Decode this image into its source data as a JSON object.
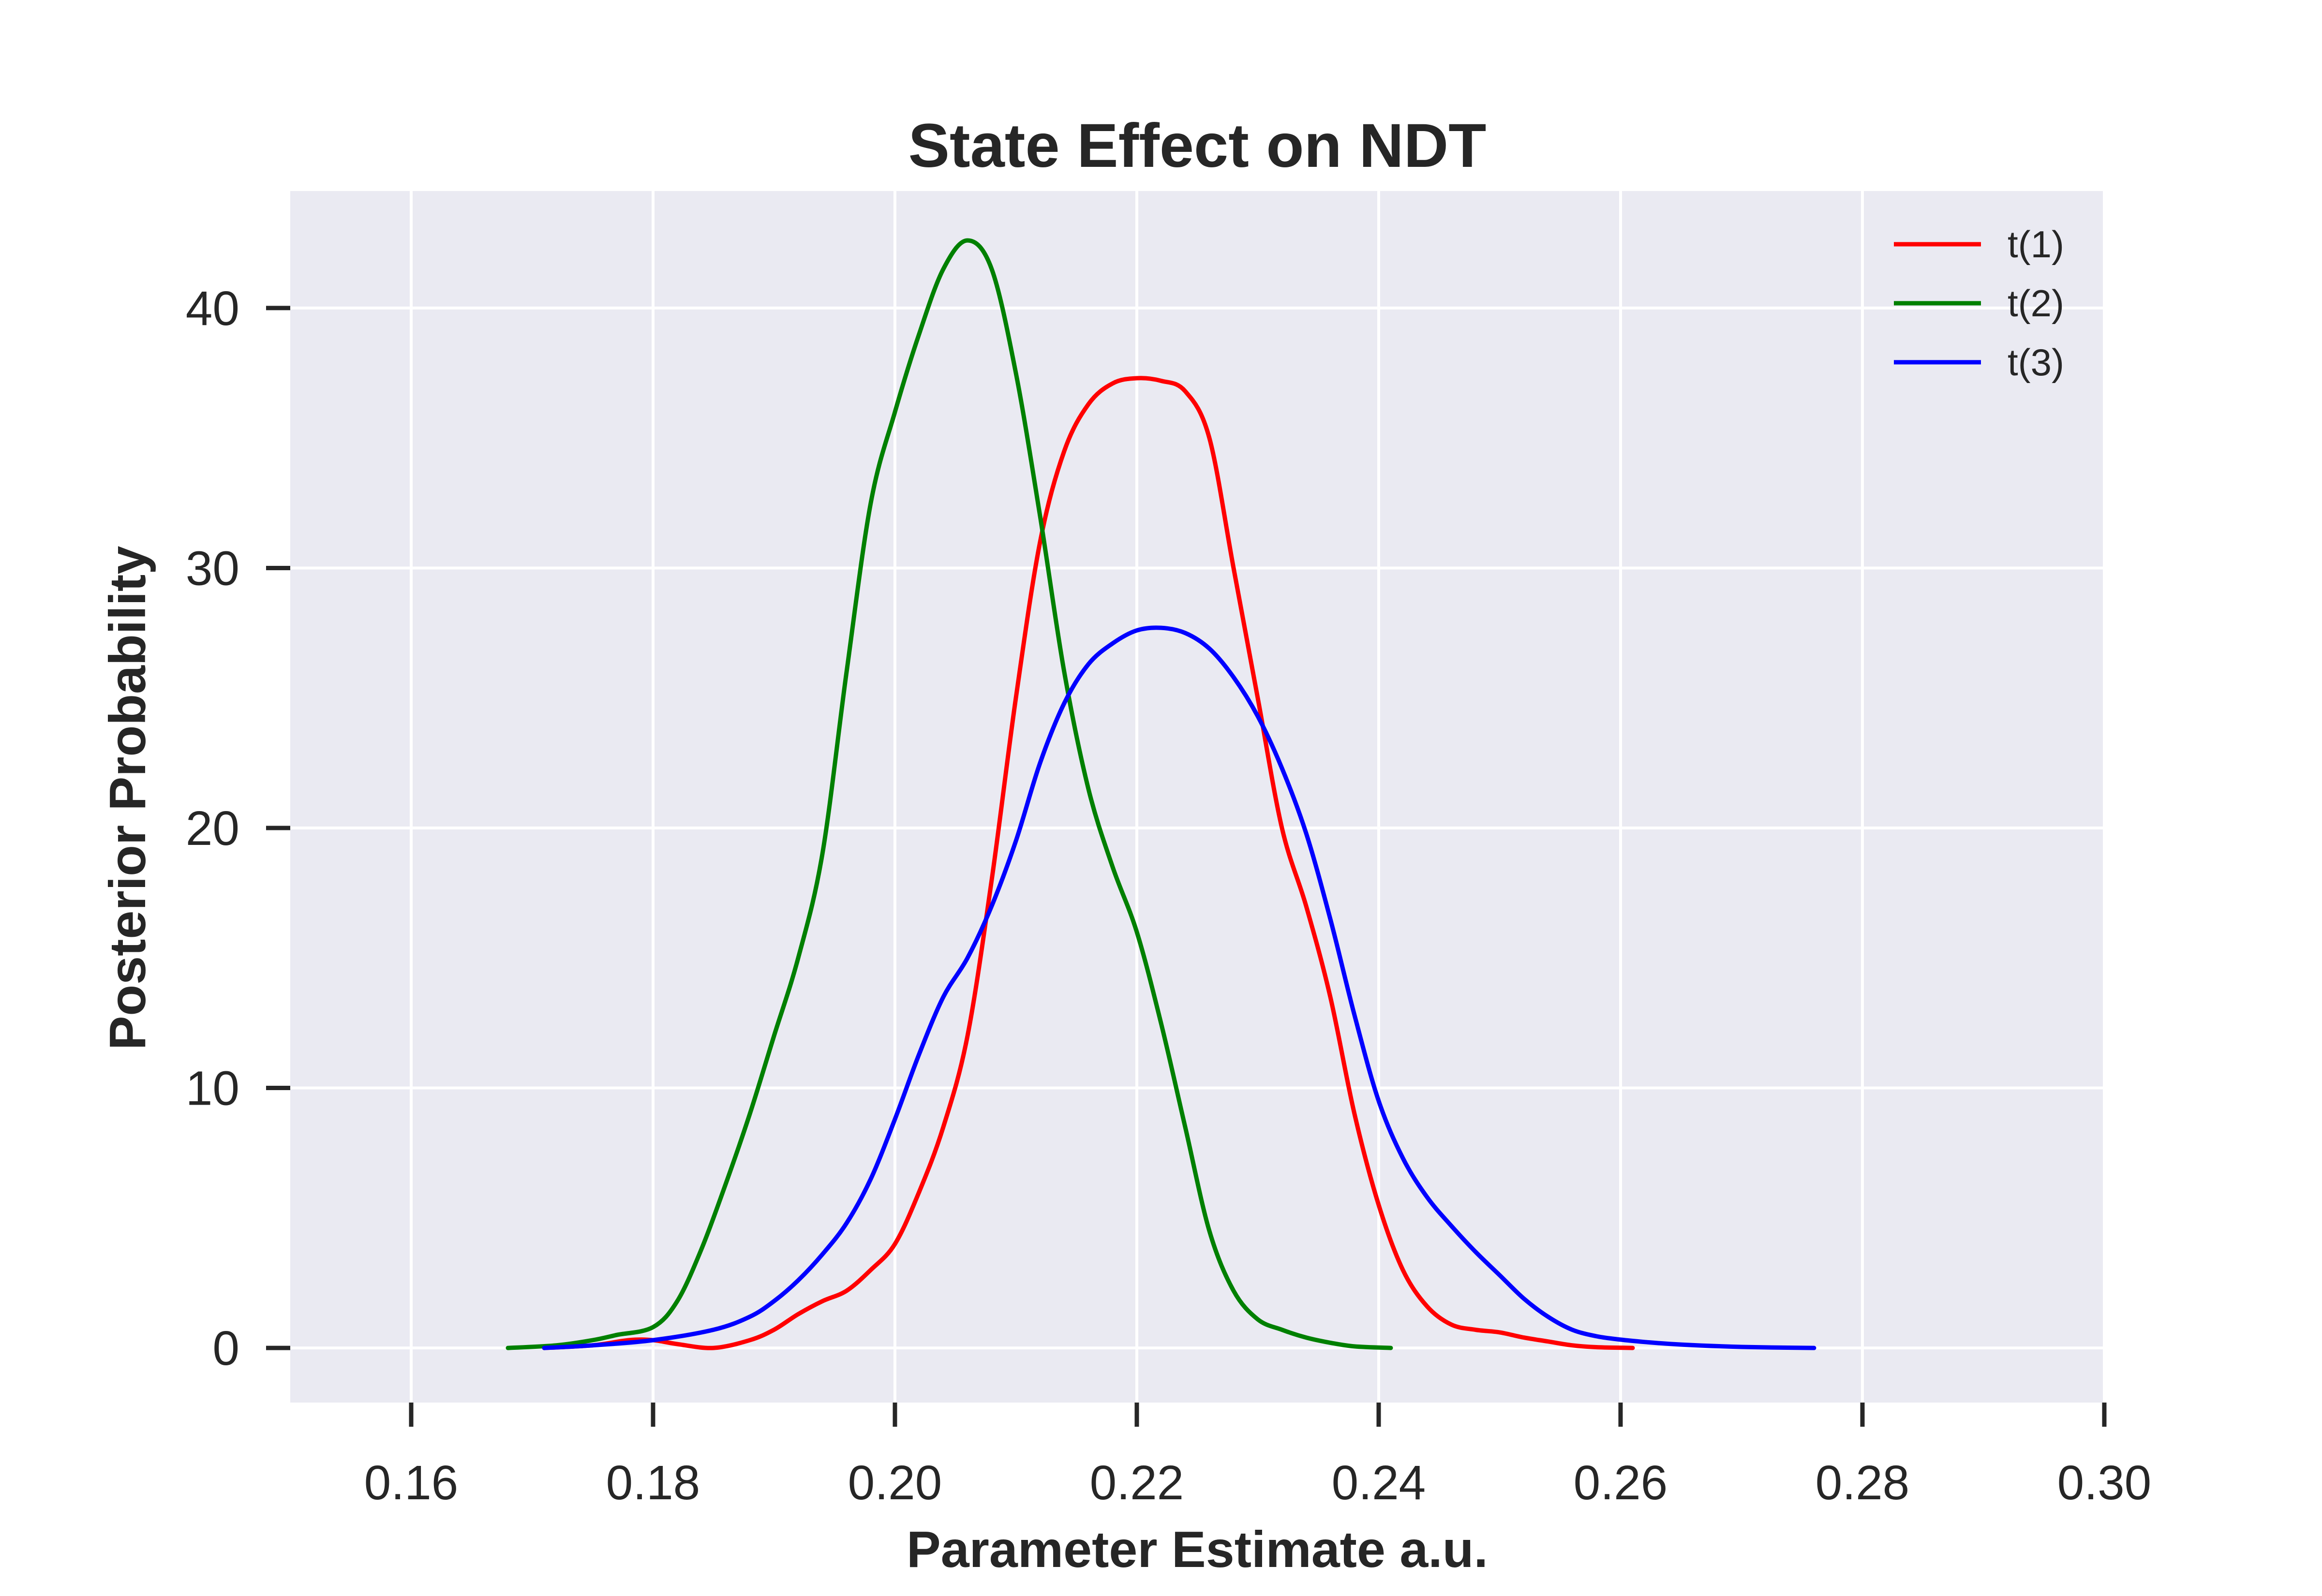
{
  "chart_data": {
    "type": "line",
    "title": "State Effect on NDT",
    "xlabel": "Parameter Estimate a.u.",
    "ylabel": "Posterior Probability",
    "xlim": [
      0.15,
      0.3
    ],
    "ylim": [
      -2.1,
      44.5
    ],
    "xticks": [
      0.16,
      0.18,
      0.2,
      0.22,
      0.24,
      0.26,
      0.28,
      0.3
    ],
    "xtick_labels": [
      "0.16",
      "0.18",
      "0.20",
      "0.22",
      "0.24",
      "0.26",
      "0.28",
      "0.30"
    ],
    "yticks": [
      0,
      10,
      20,
      30,
      40
    ],
    "ytick_labels": [
      "0",
      "10",
      "20",
      "30",
      "40"
    ],
    "grid": true,
    "legend_position": "top-right",
    "series": [
      {
        "name": "t(1)",
        "color": "#ff0000",
        "points": [
          [
            0.171,
            0.0
          ],
          [
            0.175,
            0.1
          ],
          [
            0.178,
            0.3
          ],
          [
            0.18,
            0.3
          ],
          [
            0.182,
            0.15
          ],
          [
            0.185,
            0.0
          ],
          [
            0.188,
            0.3
          ],
          [
            0.19,
            0.7
          ],
          [
            0.192,
            1.3
          ],
          [
            0.194,
            1.8
          ],
          [
            0.196,
            2.2
          ],
          [
            0.198,
            3.0
          ],
          [
            0.2,
            4.0
          ],
          [
            0.202,
            6.0
          ],
          [
            0.204,
            8.5
          ],
          [
            0.206,
            12.0
          ],
          [
            0.208,
            18.0
          ],
          [
            0.21,
            25.0
          ],
          [
            0.212,
            31.0
          ],
          [
            0.214,
            34.5
          ],
          [
            0.216,
            36.3
          ],
          [
            0.218,
            37.1
          ],
          [
            0.22,
            37.3
          ],
          [
            0.222,
            37.2
          ],
          [
            0.224,
            36.8
          ],
          [
            0.226,
            35.0
          ],
          [
            0.228,
            30.0
          ],
          [
            0.23,
            25.0
          ],
          [
            0.232,
            20.0
          ],
          [
            0.234,
            17.0
          ],
          [
            0.236,
            13.5
          ],
          [
            0.238,
            9.0
          ],
          [
            0.24,
            5.5
          ],
          [
            0.242,
            3.0
          ],
          [
            0.244,
            1.6
          ],
          [
            0.246,
            0.9
          ],
          [
            0.248,
            0.7
          ],
          [
            0.25,
            0.6
          ],
          [
            0.252,
            0.4
          ],
          [
            0.254,
            0.25
          ],
          [
            0.256,
            0.1
          ],
          [
            0.258,
            0.03
          ],
          [
            0.261,
            0.0
          ]
        ]
      },
      {
        "name": "t(2)",
        "color": "#008000",
        "points": [
          [
            0.168,
            0.0
          ],
          [
            0.172,
            0.1
          ],
          [
            0.175,
            0.3
          ],
          [
            0.177,
            0.5
          ],
          [
            0.18,
            0.8
          ],
          [
            0.182,
            1.8
          ],
          [
            0.184,
            3.8
          ],
          [
            0.186,
            6.3
          ],
          [
            0.188,
            9.0
          ],
          [
            0.19,
            12.0
          ],
          [
            0.192,
            15.0
          ],
          [
            0.194,
            19.0
          ],
          [
            0.196,
            26.0
          ],
          [
            0.198,
            32.5
          ],
          [
            0.2,
            36.0
          ],
          [
            0.202,
            39.0
          ],
          [
            0.204,
            41.5
          ],
          [
            0.206,
            42.6
          ],
          [
            0.208,
            41.5
          ],
          [
            0.21,
            37.5
          ],
          [
            0.212,
            32.0
          ],
          [
            0.214,
            26.0
          ],
          [
            0.216,
            21.5
          ],
          [
            0.218,
            18.5
          ],
          [
            0.22,
            16.0
          ],
          [
            0.222,
            12.5
          ],
          [
            0.224,
            8.5
          ],
          [
            0.226,
            4.5
          ],
          [
            0.228,
            2.2
          ],
          [
            0.23,
            1.1
          ],
          [
            0.232,
            0.7
          ],
          [
            0.234,
            0.4
          ],
          [
            0.236,
            0.2
          ],
          [
            0.238,
            0.06
          ],
          [
            0.241,
            0.0
          ]
        ]
      },
      {
        "name": "t(3)",
        "color": "#0000ff",
        "points": [
          [
            0.171,
            0.0
          ],
          [
            0.175,
            0.1
          ],
          [
            0.18,
            0.3
          ],
          [
            0.185,
            0.7
          ],
          [
            0.188,
            1.2
          ],
          [
            0.19,
            1.8
          ],
          [
            0.192,
            2.6
          ],
          [
            0.194,
            3.6
          ],
          [
            0.196,
            4.8
          ],
          [
            0.198,
            6.5
          ],
          [
            0.2,
            8.8
          ],
          [
            0.202,
            11.3
          ],
          [
            0.204,
            13.5
          ],
          [
            0.206,
            15.0
          ],
          [
            0.208,
            17.0
          ],
          [
            0.21,
            19.5
          ],
          [
            0.212,
            22.5
          ],
          [
            0.214,
            24.8
          ],
          [
            0.216,
            26.3
          ],
          [
            0.218,
            27.1
          ],
          [
            0.22,
            27.6
          ],
          [
            0.222,
            27.7
          ],
          [
            0.224,
            27.5
          ],
          [
            0.226,
            26.9
          ],
          [
            0.228,
            25.8
          ],
          [
            0.23,
            24.3
          ],
          [
            0.232,
            22.3
          ],
          [
            0.234,
            19.8
          ],
          [
            0.236,
            16.5
          ],
          [
            0.238,
            12.8
          ],
          [
            0.24,
            9.5
          ],
          [
            0.242,
            7.3
          ],
          [
            0.244,
            5.8
          ],
          [
            0.246,
            4.7
          ],
          [
            0.248,
            3.7
          ],
          [
            0.25,
            2.8
          ],
          [
            0.252,
            1.9
          ],
          [
            0.254,
            1.2
          ],
          [
            0.256,
            0.7
          ],
          [
            0.258,
            0.45
          ],
          [
            0.26,
            0.32
          ],
          [
            0.262,
            0.23
          ],
          [
            0.265,
            0.13
          ],
          [
            0.27,
            0.04
          ],
          [
            0.276,
            0.0
          ]
        ]
      }
    ]
  }
}
